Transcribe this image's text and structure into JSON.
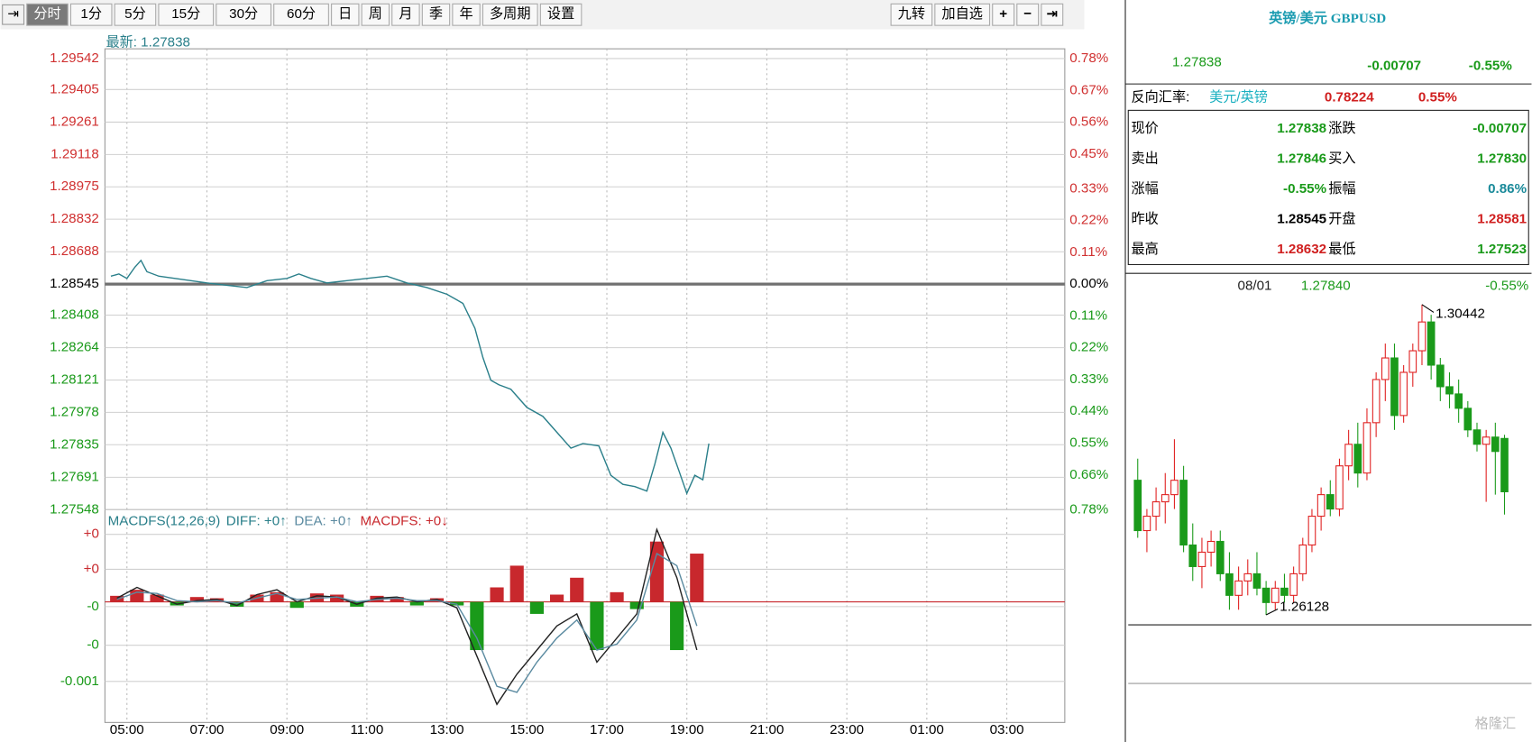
{
  "toolbar": {
    "left": [
      "分时",
      "1分",
      "5分",
      "15分",
      "30分",
      "60分",
      "日",
      "周",
      "月",
      "季",
      "年",
      "多周期",
      "设置"
    ],
    "right": [
      "九转",
      "加自选"
    ]
  },
  "quote": {
    "title": "英镑/美元 GBPUSD",
    "price": "1.27838",
    "change": "-0.00707",
    "change_pct": "-0.55%",
    "reverse_label": "反向汇率:",
    "reverse_pair": "美元/英镑",
    "reverse_price": "0.78224",
    "reverse_pct": "0.55%"
  },
  "table": {
    "rows": [
      [
        "现价",
        "1.27838",
        "涨跌",
        "-0.00707"
      ],
      [
        "卖出",
        "1.27846",
        "买入",
        "1.27830"
      ],
      [
        "涨幅",
        "-0.55%",
        "振幅",
        "0.86%"
      ],
      [
        "昨收",
        "1.28545",
        "开盘",
        "1.28581"
      ],
      [
        "最高",
        "1.28632",
        "最低",
        "1.27523"
      ]
    ],
    "value_colors": [
      [
        "#1a9a1a",
        "#1a9a1a"
      ],
      [
        "#1a9a1a",
        "#1a9a1a"
      ],
      [
        "#1a9a1a",
        "#1a8a9a"
      ],
      [
        "#000000",
        "#d02020"
      ],
      [
        "#d02020",
        "#1a9a1a"
      ]
    ]
  },
  "watermark": "格隆汇",
  "chart_data": [
    {
      "type": "line",
      "label": "最新: 1.27838",
      "color": "#2a7f8a",
      "up_color": "#d03030",
      "down_color": "#1a9a1a",
      "reference": 1.28545,
      "xlim": [
        4.45,
        28.45
      ],
      "ylim": [
        1.27548,
        1.29542
      ],
      "yticks": [
        1.29542,
        1.29405,
        1.29261,
        1.29118,
        1.28975,
        1.28832,
        1.28688,
        1.28545,
        1.28408,
        1.28264,
        1.28121,
        1.27978,
        1.27835,
        1.27691,
        1.27548
      ],
      "y2lim": [
        -0.78,
        0.78
      ],
      "y2ticks": [
        {
          "value": 0.78,
          "label": "0.78%"
        },
        {
          "value": 0.67,
          "label": "0.67%"
        },
        {
          "value": 0.56,
          "label": "0.56%"
        },
        {
          "value": 0.45,
          "label": "0.45%"
        },
        {
          "value": 0.33,
          "label": "0.33%"
        },
        {
          "value": 0.22,
          "label": "0.22%"
        },
        {
          "value": 0.11,
          "label": "0.11%"
        },
        {
          "value": 0,
          "label": "0.00%"
        },
        {
          "value": -0.11,
          "label": "0.11%"
        },
        {
          "value": -0.22,
          "label": "0.22%"
        },
        {
          "value": -0.33,
          "label": "0.33%"
        },
        {
          "value": -0.44,
          "label": "0.44%"
        },
        {
          "value": -0.55,
          "label": "0.55%"
        },
        {
          "value": -0.66,
          "label": "0.66%"
        },
        {
          "value": -0.78,
          "label": "0.78%"
        }
      ],
      "x": [
        4.6,
        4.8,
        5.0,
        5.2,
        5.35,
        5.5,
        5.8,
        6.2,
        6.6,
        7.0,
        7.5,
        8.0,
        8.5,
        9.0,
        9.3,
        9.6,
        10.0,
        10.5,
        11.0,
        11.5,
        12.0,
        12.5,
        13.0,
        13.4,
        13.7,
        13.9,
        14.1,
        14.3,
        14.6,
        15.0,
        15.4,
        15.8,
        16.1,
        16.4,
        16.8,
        17.1,
        17.4,
        17.7,
        18.0,
        18.2,
        18.4,
        18.6,
        18.8,
        19.0,
        19.2,
        19.4,
        19.55
      ],
      "values": [
        1.2858,
        1.2859,
        1.2857,
        1.2862,
        1.2865,
        1.286,
        1.2858,
        1.2857,
        1.2856,
        1.2855,
        1.2854,
        1.2853,
        1.2856,
        1.2857,
        1.2859,
        1.2857,
        1.2855,
        1.2856,
        1.2857,
        1.2858,
        1.2855,
        1.2853,
        1.285,
        1.2846,
        1.2835,
        1.2822,
        1.2812,
        1.281,
        1.2808,
        1.28,
        1.2796,
        1.2788,
        1.2782,
        1.2784,
        1.2783,
        1.277,
        1.2766,
        1.2765,
        1.2763,
        1.2775,
        1.2789,
        1.2782,
        1.2772,
        1.2762,
        1.277,
        1.2768,
        1.2784
      ]
    },
    {
      "type": "macd",
      "label": "MACDFS(12,26,9)",
      "up_color": "#c8282d",
      "down_color": "#1a9a1a",
      "xlim": [
        4.45,
        28.45
      ],
      "ylim": [
        -0.00096,
        0.0007
      ],
      "xticks": [
        {
          "value": 5,
          "label": "05:00"
        },
        {
          "value": 7,
          "label": "07:00"
        },
        {
          "value": 9,
          "label": "09:00"
        },
        {
          "value": 11,
          "label": "11:00"
        },
        {
          "value": 13,
          "label": "13:00"
        },
        {
          "value": 15,
          "label": "15:00"
        },
        {
          "value": 17,
          "label": "17:00"
        },
        {
          "value": 19,
          "label": "19:00"
        },
        {
          "value": 21,
          "label": "21:00"
        },
        {
          "value": 23,
          "label": "23:00"
        },
        {
          "value": 25,
          "label": "01:00"
        },
        {
          "value": 27,
          "label": "03:00"
        }
      ],
      "yticks": [
        {
          "value": 0.00056,
          "label": "+0"
        },
        {
          "value": 0.00027,
          "label": "+0"
        },
        {
          "value": -4e-05,
          "label": "-0"
        },
        {
          "value": -0.00036,
          "label": "-0"
        },
        {
          "value": -0.00066,
          "label": "-0.001"
        }
      ],
      "x": [
        4.75,
        5.25,
        5.75,
        6.25,
        6.75,
        7.25,
        7.75,
        8.25,
        8.75,
        9.25,
        9.75,
        10.25,
        10.75,
        11.25,
        11.75,
        12.25,
        12.75,
        13.25,
        13.75,
        14.25,
        14.75,
        15.25,
        15.75,
        16.25,
        16.75,
        17.25,
        17.75,
        18.25,
        18.75,
        19.25
      ],
      "series": [
        {
          "name": "DIFF: +0↑",
          "color": "#222222",
          "kind": "line",
          "values": [
            3e-05,
            0.00012,
            5e-05,
            -2e-05,
            1e-05,
            2e-05,
            -3e-05,
            6e-05,
            0.0001,
            0,
            5e-05,
            4e-05,
            -2e-05,
            3e-05,
            4e-05,
            0,
            2e-05,
            -5e-05,
            -0.00045,
            -0.00085,
            -0.0006,
            -0.0004,
            -0.0002,
            -0.0001,
            -0.0005,
            -0.0003,
            -0.0001,
            0.0006,
            0.0002,
            -0.0004
          ]
        },
        {
          "name": "DEA: +0↑",
          "color": "#5a8aa0",
          "kind": "line",
          "values": [
            2e-05,
            8e-05,
            7e-05,
            1e-05,
            0,
            1e-05,
            -1e-05,
            3e-05,
            7e-05,
            2e-05,
            3e-05,
            4e-05,
            0,
            2e-05,
            3e-05,
            1e-05,
            1e-05,
            -2e-05,
            -0.0003,
            -0.0007,
            -0.00075,
            -0.0005,
            -0.0003,
            -0.00015,
            -0.0004,
            -0.00035,
            -0.00015,
            0.0004,
            0.0003,
            -0.0002
          ]
        },
        {
          "name": "MACDFS: +0↓",
          "color": "#c8282d",
          "kind": "bar",
          "values": [
            5e-05,
            0.0001,
            6e-05,
            -3e-05,
            4e-05,
            3e-05,
            -4e-05,
            6e-05,
            8e-05,
            -5e-05,
            7e-05,
            6e-05,
            -4e-05,
            5e-05,
            4e-05,
            -3e-05,
            3e-05,
            -3e-05,
            -0.0004,
            0.00012,
            0.0003,
            -0.0001,
            6e-05,
            0.0002,
            -0.0004,
            8e-05,
            -6e-05,
            0.0005,
            -0.0004,
            0.0004
          ]
        }
      ]
    },
    {
      "type": "candlestick",
      "date": "08/01",
      "close_label": "1.27840",
      "pct_label": "-0.55%",
      "up_color": "#e02020",
      "down_color": "#1a9a1a",
      "ylim": [
        1.2599,
        1.3074
      ],
      "high_note": 1.30442,
      "low_note": 1.26128,
      "open": [
        1.28,
        1.273,
        1.275,
        1.277,
        1.278,
        1.28,
        1.271,
        1.268,
        1.27,
        1.2715,
        1.267,
        1.264,
        1.266,
        1.267,
        1.265,
        1.263,
        1.265,
        1.264,
        1.267,
        1.271,
        1.275,
        1.278,
        1.276,
        1.282,
        1.285,
        1.281,
        1.288,
        1.294,
        1.297,
        1.289,
        1.295,
        1.298,
        1.302,
        1.296,
        1.293,
        1.292,
        1.29,
        1.287,
        1.285,
        1.286,
        1.28581
      ],
      "high": [
        1.283,
        1.276,
        1.279,
        1.281,
        1.2857,
        1.282,
        1.274,
        1.272,
        1.273,
        1.273,
        1.27,
        1.268,
        1.269,
        1.27,
        1.266,
        1.266,
        1.267,
        1.268,
        1.272,
        1.276,
        1.279,
        1.28,
        1.283,
        1.287,
        1.288,
        1.29,
        1.295,
        1.299,
        1.299,
        1.296,
        1.299,
        1.30442,
        1.303,
        1.297,
        1.295,
        1.294,
        1.291,
        1.288,
        1.287,
        1.288,
        1.28632
      ],
      "low": [
        1.272,
        1.27,
        1.273,
        1.274,
        1.276,
        1.27,
        1.266,
        1.265,
        1.268,
        1.266,
        1.262,
        1.262,
        1.264,
        1.264,
        1.26128,
        1.262,
        1.263,
        1.263,
        1.266,
        1.27,
        1.273,
        1.275,
        1.275,
        1.28,
        1.279,
        1.28,
        1.286,
        1.291,
        1.287,
        1.288,
        1.293,
        1.296,
        1.294,
        1.291,
        1.29,
        1.288,
        1.286,
        1.284,
        1.277,
        1.278,
        1.27523
      ],
      "close": [
        1.273,
        1.275,
        1.277,
        1.278,
        1.28,
        1.271,
        1.268,
        1.27,
        1.2715,
        1.267,
        1.264,
        1.266,
        1.267,
        1.265,
        1.263,
        1.265,
        1.264,
        1.267,
        1.271,
        1.275,
        1.278,
        1.276,
        1.282,
        1.285,
        1.281,
        1.288,
        1.294,
        1.297,
        1.289,
        1.295,
        1.298,
        1.302,
        1.296,
        1.293,
        1.292,
        1.29,
        1.287,
        1.285,
        1.286,
        1.284,
        1.2784
      ]
    }
  ]
}
